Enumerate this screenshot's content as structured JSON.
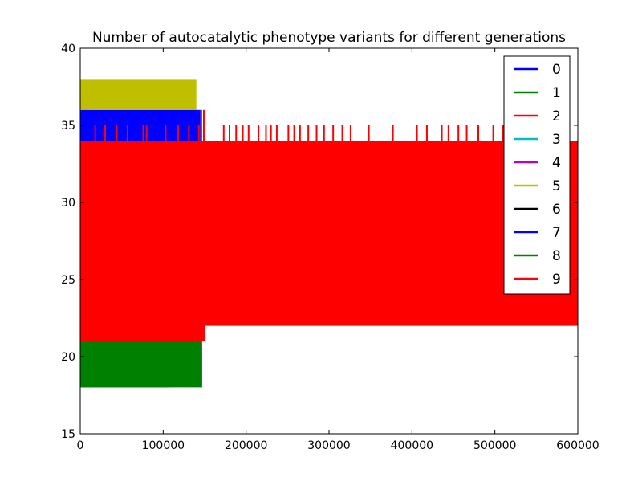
{
  "chart_data": {
    "type": "line",
    "title": "Number of autocatalytic phenotype variants for different generations",
    "xlabel": "",
    "ylabel": "",
    "xlim": [
      0,
      600000
    ],
    "ylim": [
      15,
      40
    ],
    "x_ticks": [
      0,
      100000,
      200000,
      300000,
      400000,
      500000,
      600000
    ],
    "x_tick_labels": [
      "0",
      "100000",
      "200000",
      "300000",
      "400000",
      "500000",
      "600000"
    ],
    "y_ticks": [
      15,
      20,
      25,
      30,
      35,
      40
    ],
    "y_tick_labels": [
      "15",
      "20",
      "25",
      "30",
      "35",
      "40"
    ],
    "grid": false,
    "legend_position": "top-right",
    "series": [
      {
        "name": "0",
        "color": "#0000ff",
        "x_range": [
          0,
          145000
        ],
        "y_range": [
          34,
          36
        ],
        "spikes": [
          {
            "x": 1000,
            "y": 36
          },
          {
            "x": 15000,
            "y": 36
          },
          {
            "x": 27000,
            "y": 36
          },
          {
            "x": 42000,
            "y": 36
          },
          {
            "x": 58000,
            "y": 36
          },
          {
            "x": 90000,
            "y": 36
          },
          {
            "x": 122000,
            "y": 36
          }
        ]
      },
      {
        "name": "1",
        "color": "#008000",
        "x_range": [
          0,
          147000
        ],
        "y_range": [
          18,
          22
        ],
        "spikes": []
      },
      {
        "name": "2",
        "color": "#ff0000",
        "x_range": [
          0,
          600000
        ],
        "y_range": [
          22,
          34
        ],
        "spikes": [
          {
            "x": 173000,
            "y": 35
          },
          {
            "x": 180000,
            "y": 35
          },
          {
            "x": 188000,
            "y": 35
          },
          {
            "x": 196000,
            "y": 35
          },
          {
            "x": 203000,
            "y": 35
          },
          {
            "x": 215000,
            "y": 35
          },
          {
            "x": 224000,
            "y": 35
          },
          {
            "x": 230000,
            "y": 35
          },
          {
            "x": 237000,
            "y": 35
          },
          {
            "x": 251000,
            "y": 35
          },
          {
            "x": 258000,
            "y": 35
          },
          {
            "x": 265000,
            "y": 35
          },
          {
            "x": 275000,
            "y": 35
          },
          {
            "x": 285000,
            "y": 35
          },
          {
            "x": 294000,
            "y": 35
          },
          {
            "x": 305000,
            "y": 35
          },
          {
            "x": 316000,
            "y": 35
          },
          {
            "x": 326000,
            "y": 35
          },
          {
            "x": 348000,
            "y": 35
          },
          {
            "x": 377000,
            "y": 35
          },
          {
            "x": 406000,
            "y": 35
          },
          {
            "x": 418000,
            "y": 35
          },
          {
            "x": 436000,
            "y": 35
          },
          {
            "x": 444000,
            "y": 35
          },
          {
            "x": 456000,
            "y": 35
          },
          {
            "x": 466000,
            "y": 35
          },
          {
            "x": 480000,
            "y": 35
          },
          {
            "x": 498000,
            "y": 35
          },
          {
            "x": 510000,
            "y": 35
          }
        ]
      },
      {
        "name": "3",
        "color": "#00bfbf",
        "x_range": null,
        "y_range": null,
        "spikes": []
      },
      {
        "name": "4",
        "color": "#bf00bf",
        "x_range": [
          108000,
          112000
        ],
        "y_range": [
          21,
          22
        ],
        "spikes": []
      },
      {
        "name": "5",
        "color": "#bfbf00",
        "x_range": [
          0,
          140000
        ],
        "y_range": [
          36,
          38
        ],
        "spikes": []
      },
      {
        "name": "6",
        "color": "#000000",
        "x_range": null,
        "y_range": null,
        "spikes": []
      },
      {
        "name": "7",
        "color": "#0000ff",
        "x_range": [
          0,
          143000
        ],
        "y_range": [
          34,
          35
        ],
        "spikes": [
          {
            "x": 8000,
            "y": 35
          },
          {
            "x": 35000,
            "y": 35
          },
          {
            "x": 65000,
            "y": 35
          },
          {
            "x": 100000,
            "y": 35
          },
          {
            "x": 130000,
            "y": 35
          }
        ]
      },
      {
        "name": "8",
        "color": "#008000",
        "x_range": [
          0,
          107000
        ],
        "y_range": [
          18,
          22
        ],
        "spikes": []
      },
      {
        "name": "9",
        "color": "#ff0000",
        "x_range": [
          0,
          151000
        ],
        "y_range": [
          21,
          34
        ],
        "spikes": [
          {
            "x": 18000,
            "y": 35
          },
          {
            "x": 30000,
            "y": 35
          },
          {
            "x": 44000,
            "y": 35
          },
          {
            "x": 57000,
            "y": 35
          },
          {
            "x": 76000,
            "y": 35
          },
          {
            "x": 80000,
            "y": 35
          },
          {
            "x": 103000,
            "y": 35
          },
          {
            "x": 118000,
            "y": 35
          },
          {
            "x": 131000,
            "y": 35
          },
          {
            "x": 143000,
            "y": 35
          },
          {
            "x": 146000,
            "y": 36
          },
          {
            "x": 149000,
            "y": 36
          }
        ]
      }
    ]
  }
}
